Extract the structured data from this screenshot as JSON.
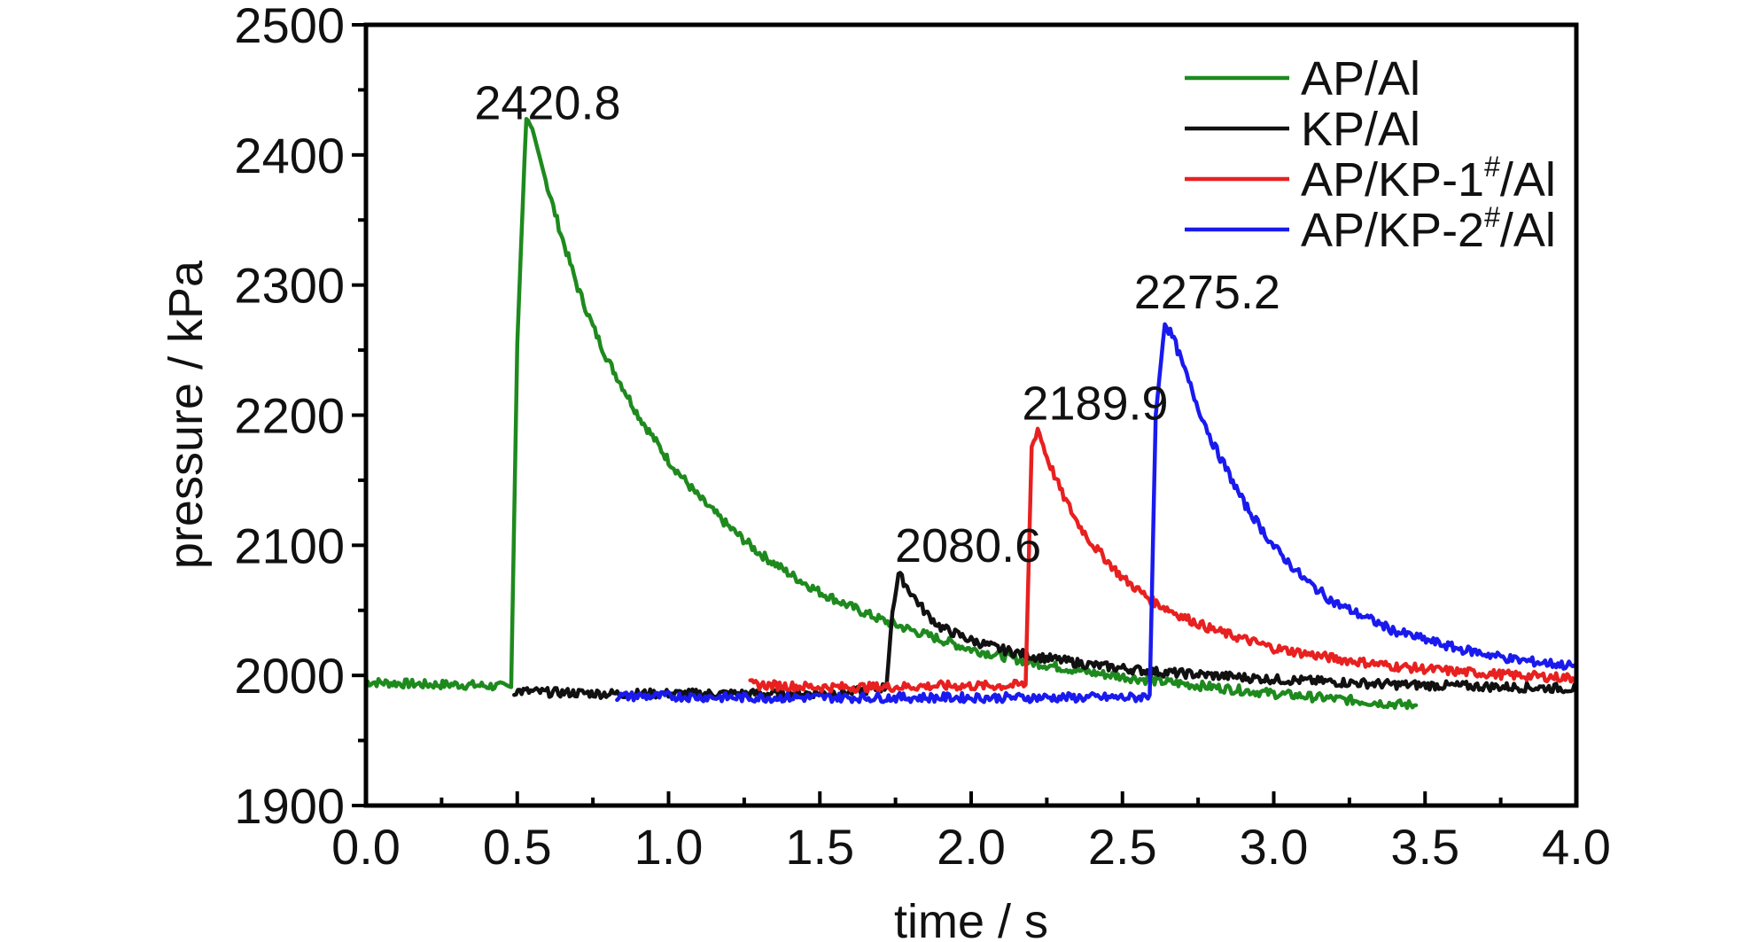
{
  "chart_data": {
    "type": "line",
    "xlabel": "time / s",
    "ylabel": "pressure / kPa",
    "xlim": [
      0.0,
      4.0
    ],
    "ylim": [
      1900,
      2500
    ],
    "x_ticks": [
      "0.0",
      "0.5",
      "1.0",
      "1.5",
      "2.0",
      "2.5",
      "3.0",
      "3.5",
      "4.0"
    ],
    "y_ticks": [
      "1900",
      "2000",
      "2100",
      "2200",
      "2300",
      "2400",
      "2500"
    ],
    "grid": false,
    "legend_position": "top-right",
    "series": [
      {
        "name": "AP/Al",
        "name_base": "AP/Al",
        "name_sup": "",
        "name_tail": "",
        "color": "#1e8a1e",
        "x": [
          0.0,
          0.1,
          0.2,
          0.3,
          0.4,
          0.48,
          0.5,
          0.53,
          0.55,
          0.6,
          0.65,
          0.7,
          0.75,
          0.8,
          0.9,
          1.0,
          1.1,
          1.2,
          1.3,
          1.4,
          1.5,
          1.6,
          1.7,
          1.8,
          2.0,
          2.2,
          2.4,
          2.6,
          2.8,
          3.0,
          3.2,
          3.4,
          3.47
        ],
        "y": [
          1995,
          1994,
          1993,
          1993,
          1992,
          1991,
          2255,
          2431,
          2420,
          2375,
          2335,
          2298,
          2268,
          2242,
          2200,
          2165,
          2137,
          2114,
          2094,
          2078,
          2064,
          2053,
          2043,
          2035,
          2020,
          2010,
          2002,
          1996,
          1991,
          1986,
          1982,
          1978,
          1977
        ]
      },
      {
        "name": "KP/Al",
        "name_base": "KP/Al",
        "name_sup": "",
        "name_tail": "",
        "color": "#111111",
        "x": [
          0.49,
          0.6,
          0.8,
          1.0,
          1.2,
          1.4,
          1.6,
          1.72,
          1.74,
          1.76,
          1.8,
          1.85,
          1.9,
          2.0,
          2.1,
          2.2,
          2.4,
          2.6,
          2.8,
          3.0,
          3.2,
          3.4,
          3.6,
          3.8,
          4.0
        ],
        "y": [
          1988,
          1987,
          1986,
          1986,
          1986,
          1986,
          1987,
          1991,
          2050,
          2078,
          2064,
          2048,
          2037,
          2027,
          2020,
          2015,
          2008,
          2003,
          2000,
          1997,
          1995,
          1993,
          1992,
          1991,
          1990
        ]
      },
      {
        "name": "AP/KP-1#/Al",
        "name_base": "AP/KP-1",
        "name_sup": "#",
        "name_tail": "/Al",
        "color": "#e82020",
        "x": [
          1.27,
          1.5,
          1.7,
          1.9,
          2.0,
          2.1,
          2.18,
          2.2,
          2.22,
          2.25,
          2.3,
          2.35,
          2.4,
          2.5,
          2.6,
          2.7,
          2.8,
          3.0,
          3.2,
          3.4,
          3.6,
          3.8,
          4.0
        ],
        "y": [
          1993,
          1991,
          1991,
          1992,
          1992,
          1992,
          1993,
          2175,
          2190,
          2168,
          2140,
          2118,
          2101,
          2075,
          2057,
          2045,
          2035,
          2021,
          2013,
          2007,
          2003,
          2000,
          1998
        ]
      },
      {
        "name": "AP/KP-2#/Al",
        "name_base": "AP/KP-2",
        "name_sup": "#",
        "name_tail": "/Al",
        "color": "#1a1aee",
        "x": [
          0.83,
          1.0,
          1.2,
          1.4,
          1.6,
          1.8,
          2.0,
          2.2,
          2.4,
          2.55,
          2.59,
          2.61,
          2.64,
          2.67,
          2.7,
          2.75,
          2.8,
          2.9,
          3.0,
          3.1,
          3.2,
          3.4,
          3.6,
          3.8,
          4.0
        ],
        "y": [
          1984,
          1984,
          1983,
          1983,
          1983,
          1983,
          1983,
          1983,
          1983,
          1983,
          1985,
          2200,
          2271,
          2258,
          2238,
          2206,
          2178,
          2133,
          2099,
          2074,
          2056,
          2034,
          2021,
          2012,
          2007
        ]
      }
    ],
    "annotations": [
      {
        "text": "2420.8",
        "x": 0.6,
        "y": 2420.8
      },
      {
        "text": "2080.6",
        "x": 1.99,
        "y": 2080.6
      },
      {
        "text": "2189.9",
        "x": 2.41,
        "y": 2189.9
      },
      {
        "text": "2275.2",
        "x": 2.78,
        "y": 2275.2
      }
    ]
  }
}
